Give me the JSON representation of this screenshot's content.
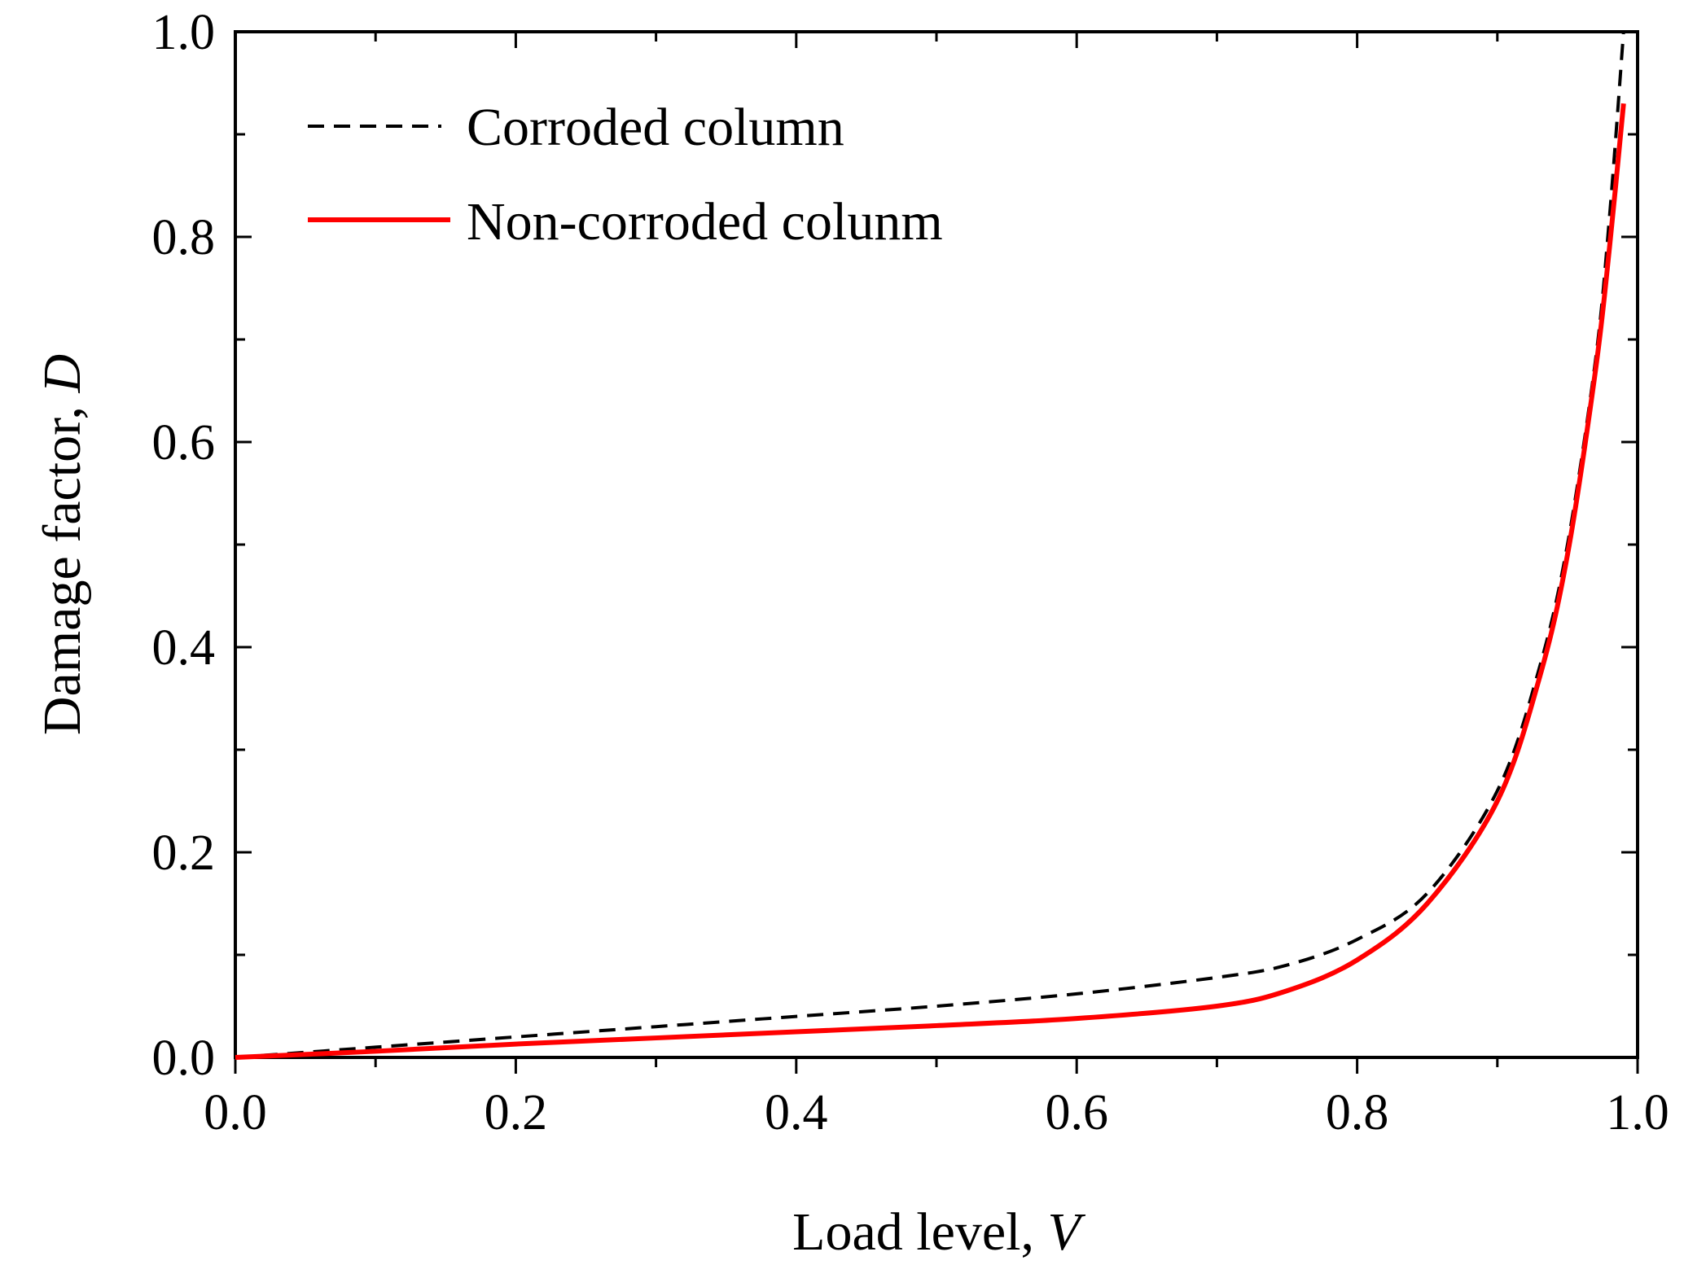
{
  "chart_data": {
    "type": "line",
    "title": "",
    "xlabel": {
      "text": "Load level, ",
      "var": "V"
    },
    "ylabel": {
      "text": "Damage factor, ",
      "var": "D"
    },
    "xlim": [
      0.0,
      1.0
    ],
    "ylim": [
      0.0,
      1.0
    ],
    "grid": false,
    "legend_position": "top-left",
    "x_tick_labels": [
      "0.0",
      "0.2",
      "0.4",
      "0.6",
      "0.8",
      "1.0"
    ],
    "y_tick_labels": [
      "0.0",
      "0.2",
      "0.4",
      "0.6",
      "0.8",
      "1.0"
    ],
    "series": [
      {
        "name": "Corroded column",
        "color": "#000000",
        "style": "dashed",
        "x": [
          0.0,
          0.1,
          0.2,
          0.3,
          0.4,
          0.5,
          0.6,
          0.7,
          0.75,
          0.8,
          0.85,
          0.9,
          0.93,
          0.95,
          0.97,
          0.98,
          0.99
        ],
        "y": [
          0.0,
          0.01,
          0.02,
          0.03,
          0.04,
          0.05,
          0.062,
          0.078,
          0.09,
          0.115,
          0.16,
          0.26,
          0.38,
          0.5,
          0.68,
          0.82,
          1.0
        ]
      },
      {
        "name": "Non-corroded colunm",
        "color": "#ff0000",
        "style": "solid",
        "x": [
          0.0,
          0.1,
          0.2,
          0.3,
          0.4,
          0.5,
          0.6,
          0.7,
          0.75,
          0.8,
          0.85,
          0.9,
          0.93,
          0.95,
          0.97,
          0.98,
          0.99
        ],
        "y": [
          0.0,
          0.006,
          0.013,
          0.019,
          0.025,
          0.031,
          0.038,
          0.05,
          0.065,
          0.095,
          0.15,
          0.25,
          0.37,
          0.49,
          0.67,
          0.79,
          0.93
        ]
      }
    ]
  }
}
